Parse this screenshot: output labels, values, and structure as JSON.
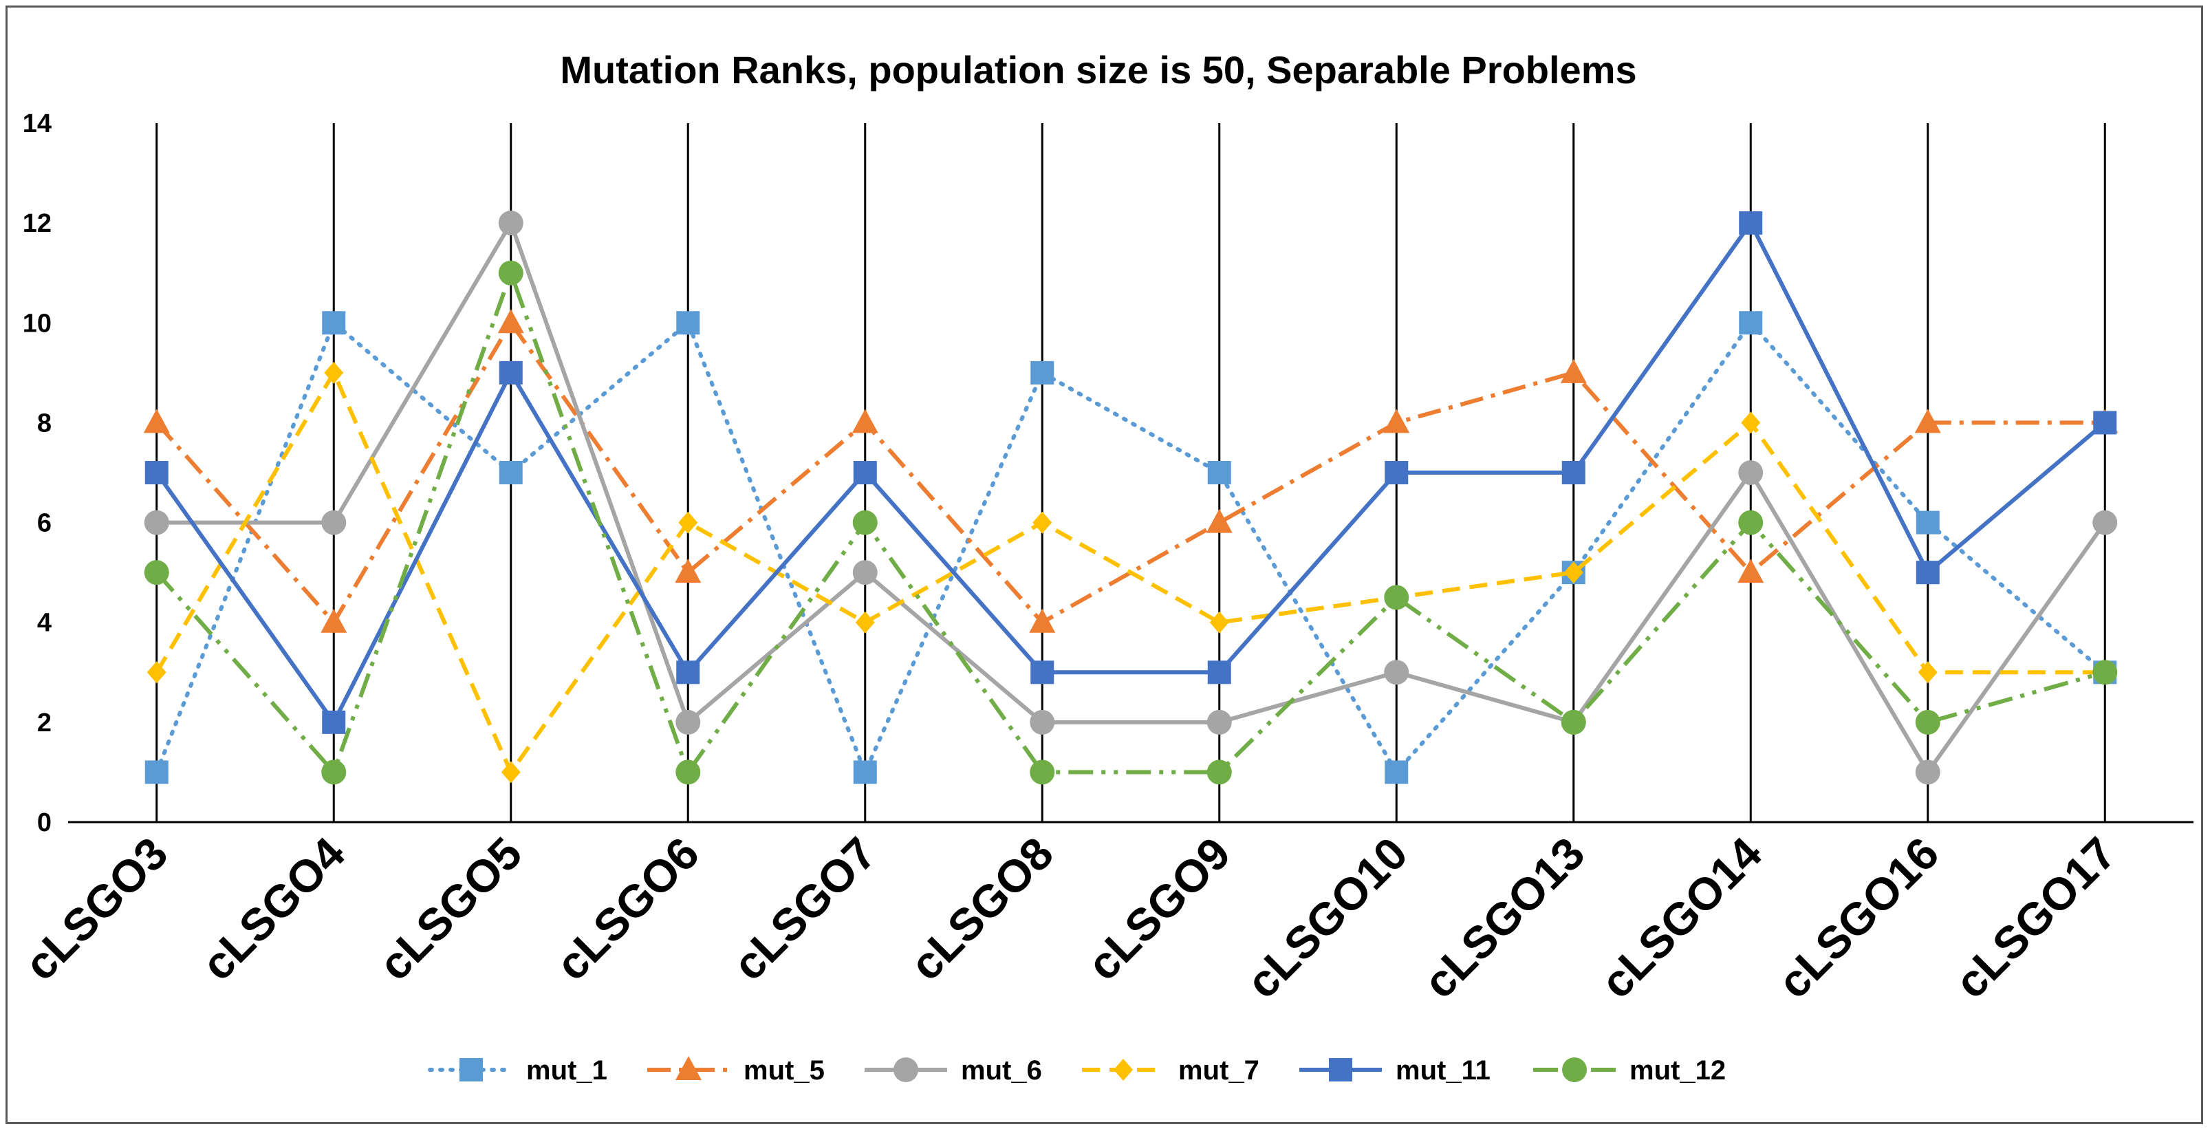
{
  "chart_data": {
    "type": "line",
    "title": "Mutation Ranks, population size is 50, Separable Problems",
    "xlabel": "",
    "ylabel": "",
    "ylim": [
      0,
      14
    ],
    "yticks": [
      0,
      2,
      4,
      6,
      8,
      10,
      12,
      14
    ],
    "grid": "vertical lines at each category",
    "legend_position": "bottom",
    "categories": [
      "cLSGO3",
      "cLSGO4",
      "cLSGO5",
      "cLSGO6",
      "cLSGO7",
      "cLSGO8",
      "cLSGO9",
      "cLSGO10",
      "cLSGO13",
      "cLSGO14",
      "cLSGO16",
      "cLSGO17"
    ],
    "series": [
      {
        "name": "mut_1",
        "color": "#5B9BD5",
        "dash": "dotted",
        "marker": "square",
        "values": [
          1,
          10,
          7,
          10,
          1,
          9,
          7,
          1,
          5,
          10,
          6,
          3
        ]
      },
      {
        "name": "mut_5",
        "color": "#ED7D31",
        "dash": "longdashdot",
        "marker": "triangle",
        "values": [
          8,
          4,
          10,
          5,
          8,
          4,
          6,
          8,
          9,
          5,
          8,
          8
        ]
      },
      {
        "name": "mut_6",
        "color": "#A5A5A5",
        "dash": "solid",
        "marker": "circle",
        "values": [
          6,
          6,
          12,
          2,
          5,
          2,
          2,
          3,
          2,
          7,
          1,
          6
        ]
      },
      {
        "name": "mut_7",
        "color": "#FFC000",
        "dash": "dashed",
        "marker": "diamond",
        "values": [
          3,
          9,
          1,
          6,
          4,
          6,
          4,
          4.5,
          5,
          8,
          3,
          3
        ]
      },
      {
        "name": "mut_11",
        "color": "#4472C4",
        "dash": "solid",
        "marker": "square",
        "values": [
          7,
          2,
          9,
          3,
          7,
          3,
          3,
          7,
          7,
          12,
          5,
          8
        ]
      },
      {
        "name": "mut_12",
        "color": "#70AD47",
        "dash": "longdashdotdot",
        "marker": "circle",
        "values": [
          5,
          1,
          11,
          1,
          6,
          1,
          1,
          4.5,
          2,
          6,
          2,
          3
        ]
      }
    ]
  }
}
